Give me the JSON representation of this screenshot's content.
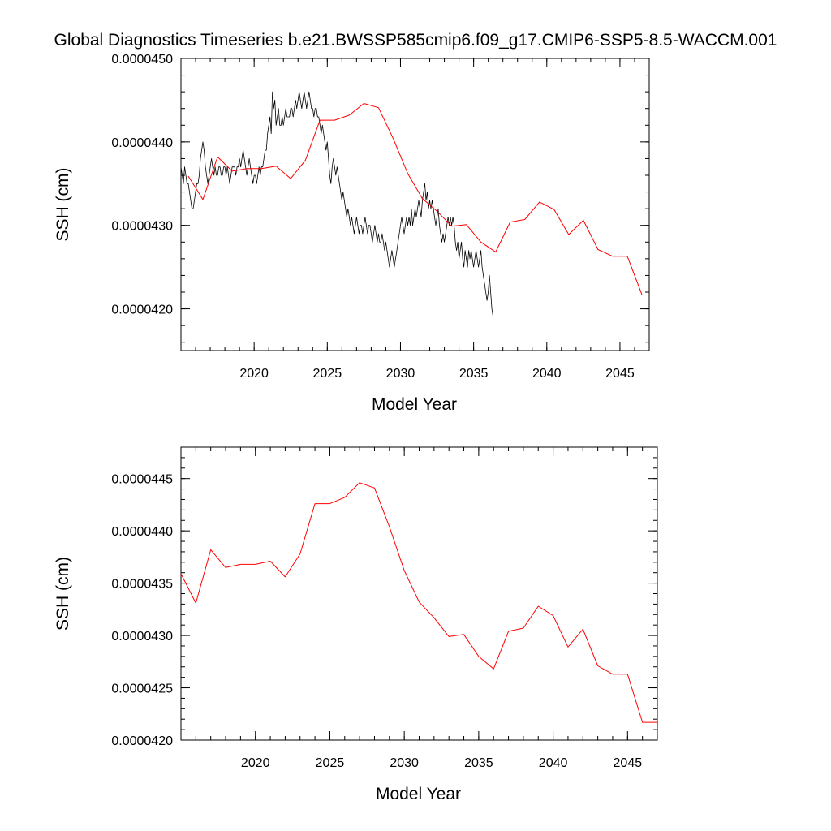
{
  "title": "Global Diagnostics Timeseries b.e21.BWSSP585cmip6.f09_g17.CMIP6-SSP5-8.5-WACCM.001",
  "chart_data": [
    {
      "type": "line",
      "xlabel": "Model Year",
      "ylabel": "SSH (cm)",
      "xlim": [
        2015,
        2047
      ],
      "ylim": [
        4.15e-05,
        4.5e-05
      ],
      "x_ticks": [
        2020,
        2025,
        2030,
        2035,
        2040,
        2045
      ],
      "x_tick_labels": [
        "2020",
        "2025",
        "2030",
        "2035",
        "2040",
        "2045"
      ],
      "y_ticks": [
        4.2e-05,
        4.3e-05,
        4.4e-05,
        4.5e-05
      ],
      "y_tick_labels": [
        "0.0000420",
        "0.0000430",
        "0.0000440",
        "0.0000450"
      ],
      "series": [
        {
          "color": "#000000",
          "x_start": 2015.0,
          "x_step": 0.08333,
          "values": [
            4.37e-05,
            4.36e-05,
            4.35e-05,
            4.37e-05,
            4.36e-05,
            4.35e-05,
            4.35e-05,
            4.34e-05,
            4.33e-05,
            4.32e-05,
            4.32e-05,
            4.33e-05,
            4.34e-05,
            4.35e-05,
            4.35e-05,
            4.36e-05,
            4.38e-05,
            4.39e-05,
            4.4e-05,
            4.39e-05,
            4.37e-05,
            4.36e-05,
            4.35e-05,
            4.36e-05,
            4.37e-05,
            4.38e-05,
            4.37e-05,
            4.36e-05,
            4.37e-05,
            4.36e-05,
            4.36e-05,
            4.37e-05,
            4.37e-05,
            4.36e-05,
            4.36e-05,
            4.37e-05,
            4.37e-05,
            4.36e-05,
            4.37e-05,
            4.36e-05,
            4.35e-05,
            4.36e-05,
            4.37e-05,
            4.37e-05,
            4.37e-05,
            4.36e-05,
            4.37e-05,
            4.37e-05,
            4.38e-05,
            4.37e-05,
            4.38e-05,
            4.39e-05,
            4.38e-05,
            4.37e-05,
            4.36e-05,
            4.37e-05,
            4.38e-05,
            4.37e-05,
            4.36e-05,
            4.35e-05,
            4.36e-05,
            4.36e-05,
            4.35e-05,
            4.36e-05,
            4.37e-05,
            4.36e-05,
            4.37e-05,
            4.37e-05,
            4.38e-05,
            4.39e-05,
            4.39e-05,
            4.41e-05,
            4.42e-05,
            4.43e-05,
            4.41e-05,
            4.46e-05,
            4.44e-05,
            4.45e-05,
            4.42e-05,
            4.43e-05,
            4.44e-05,
            4.42e-05,
            4.42e-05,
            4.43e-05,
            4.42e-05,
            4.43e-05,
            4.44e-05,
            4.43e-05,
            4.43e-05,
            4.43e-05,
            4.44e-05,
            4.44e-05,
            4.43e-05,
            4.44e-05,
            4.45e-05,
            4.44e-05,
            4.45e-05,
            4.46e-05,
            4.45e-05,
            4.44e-05,
            4.45e-05,
            4.46e-05,
            4.45e-05,
            4.44e-05,
            4.45e-05,
            4.46e-05,
            4.45e-05,
            4.44e-05,
            4.44e-05,
            4.43e-05,
            4.44e-05,
            4.44e-05,
            4.43e-05,
            4.43e-05,
            4.42e-05,
            4.41e-05,
            4.42e-05,
            4.41e-05,
            4.4e-05,
            4.39e-05,
            4.4e-05,
            4.38e-05,
            4.36e-05,
            4.35e-05,
            4.37e-05,
            4.38e-05,
            4.37e-05,
            4.36e-05,
            4.37e-05,
            4.36e-05,
            4.35e-05,
            4.34e-05,
            4.33e-05,
            4.34e-05,
            4.33e-05,
            4.32e-05,
            4.31e-05,
            4.32e-05,
            4.31e-05,
            4.3e-05,
            4.31e-05,
            4.3e-05,
            4.29e-05,
            4.3e-05,
            4.31e-05,
            4.3e-05,
            4.29e-05,
            4.3e-05,
            4.3e-05,
            4.29e-05,
            4.3e-05,
            4.31e-05,
            4.3e-05,
            4.29e-05,
            4.3e-05,
            4.3e-05,
            4.29e-05,
            4.28e-05,
            4.29e-05,
            4.3e-05,
            4.29e-05,
            4.28e-05,
            4.29e-05,
            4.28e-05,
            4.28e-05,
            4.29e-05,
            4.28e-05,
            4.27e-05,
            4.28e-05,
            4.27e-05,
            4.26e-05,
            4.25e-05,
            4.26e-05,
            4.27e-05,
            4.26e-05,
            4.25e-05,
            4.26e-05,
            4.27e-05,
            4.28e-05,
            4.29e-05,
            4.3e-05,
            4.31e-05,
            4.3e-05,
            4.29e-05,
            4.3e-05,
            4.31e-05,
            4.3e-05,
            4.31e-05,
            4.3e-05,
            4.32e-05,
            4.3e-05,
            4.31e-05,
            4.32e-05,
            4.31e-05,
            4.32e-05,
            4.33e-05,
            4.32e-05,
            4.31e-05,
            4.33e-05,
            4.34e-05,
            4.35e-05,
            4.33e-05,
            4.34e-05,
            4.32e-05,
            4.33e-05,
            4.32e-05,
            4.33e-05,
            4.32e-05,
            4.31e-05,
            4.3e-05,
            4.31e-05,
            4.32e-05,
            4.3e-05,
            4.29e-05,
            4.28e-05,
            4.29e-05,
            4.28e-05,
            4.29e-05,
            4.3e-05,
            4.31e-05,
            4.3e-05,
            4.31e-05,
            4.3e-05,
            4.31e-05,
            4.3e-05,
            4.28e-05,
            4.27e-05,
            4.28e-05,
            4.26e-05,
            4.27e-05,
            4.28e-05,
            4.26e-05,
            4.25e-05,
            4.27e-05,
            4.26e-05,
            4.25e-05,
            4.27e-05,
            4.26e-05,
            4.27e-05,
            4.26e-05,
            4.25e-05,
            4.26e-05,
            4.27e-05,
            4.26e-05,
            4.25e-05,
            4.26e-05,
            4.27e-05,
            4.25e-05,
            4.24e-05,
            4.23e-05,
            4.22e-05,
            4.21e-05,
            4.22e-05,
            4.24e-05,
            4.22e-05,
            4.2e-05,
            4.19e-05
          ]
        },
        {
          "color": "#ff0000",
          "x": [
            2015.5,
            2016.5,
            2017.5,
            2018.5,
            2019.5,
            2020.5,
            2021.5,
            2022.5,
            2023.5,
            2024.5,
            2025.5,
            2026.5,
            2027.5,
            2028.5,
            2029.5,
            2030.5,
            2031.5,
            2032.5,
            2033.5,
            2034.5,
            2035.5,
            2036.5,
            2037.5,
            2038.5,
            2039.5,
            2040.5,
            2041.5,
            2042.5,
            2043.5,
            2044.5,
            2045.5,
            2046.5
          ],
          "values": [
            4.359e-05,
            4.331e-05,
            4.382e-05,
            4.365e-05,
            4.368e-05,
            4.368e-05,
            4.371e-05,
            4.356e-05,
            4.378e-05,
            4.426e-05,
            4.426e-05,
            4.432e-05,
            4.446e-05,
            4.441e-05,
            4.404e-05,
            4.362e-05,
            4.332e-05,
            4.317e-05,
            4.299e-05,
            4.301e-05,
            4.28e-05,
            4.268e-05,
            4.304e-05,
            4.307e-05,
            4.328e-05,
            4.319e-05,
            4.289e-05,
            4.306e-05,
            4.271e-05,
            4.263e-05,
            4.263e-05,
            4.217e-05
          ]
        }
      ]
    },
    {
      "type": "line",
      "xlabel": "Model Year",
      "ylabel": "SSH (cm)",
      "xlim": [
        2015,
        2047
      ],
      "ylim": [
        4.2e-05,
        4.48e-05
      ],
      "x_ticks": [
        2020,
        2025,
        2030,
        2035,
        2040,
        2045
      ],
      "x_tick_labels": [
        "2020",
        "2025",
        "2030",
        "2035",
        "2040",
        "2045"
      ],
      "y_ticks": [
        4.2e-05,
        4.25e-05,
        4.3e-05,
        4.35e-05,
        4.4e-05,
        4.45e-05
      ],
      "y_tick_labels": [
        "0.0000420",
        "0.0000425",
        "0.0000430",
        "0.0000435",
        "0.0000440",
        "0.0000445"
      ],
      "series": [
        {
          "color": "#ff0000",
          "x": [
            2015.0,
            2016.0,
            2017.0,
            2018.0,
            2019.0,
            2020.0,
            2021.0,
            2022.0,
            2023.0,
            2024.0,
            2025.0,
            2026.0,
            2027.0,
            2028.0,
            2029.0,
            2030.0,
            2031.0,
            2032.0,
            2033.0,
            2034.0,
            2035.0,
            2036.0,
            2037.0,
            2038.0,
            2039.0,
            2040.0,
            2041.0,
            2042.0,
            2043.0,
            2044.0,
            2045.0,
            2046.0,
            2047.0
          ],
          "values": [
            4.359e-05,
            4.331e-05,
            4.382e-05,
            4.365e-05,
            4.368e-05,
            4.368e-05,
            4.371e-05,
            4.356e-05,
            4.378e-05,
            4.426e-05,
            4.426e-05,
            4.432e-05,
            4.446e-05,
            4.441e-05,
            4.404e-05,
            4.362e-05,
            4.332e-05,
            4.317e-05,
            4.299e-05,
            4.301e-05,
            4.28e-05,
            4.268e-05,
            4.304e-05,
            4.307e-05,
            4.328e-05,
            4.319e-05,
            4.289e-05,
            4.306e-05,
            4.271e-05,
            4.263e-05,
            4.263e-05,
            4.217e-05,
            4.217e-05
          ]
        }
      ]
    }
  ]
}
